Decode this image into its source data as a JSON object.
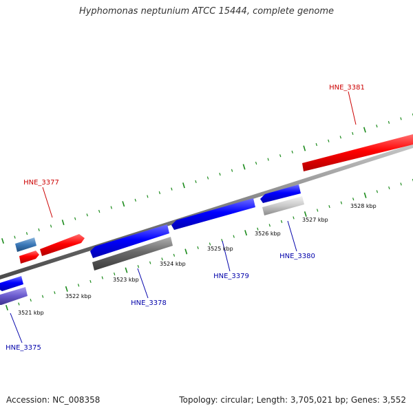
{
  "title": "Hyphomonas neptunium ATCC 15444, complete genome",
  "footer": {
    "accession": "Accession: NC_008358",
    "stats": "Topology: circular; Length: 3,705,021 bp; Genes: 3,552"
  },
  "colors": {
    "forward": "#ff0000",
    "reverse": "#0000ff",
    "tick": "#1a8a1a",
    "backbone": "#808080",
    "label_forward": "#cc0000",
    "label_reverse": "#0000aa"
  },
  "scale_labels": [
    "3521 kbp",
    "3522 kbp",
    "3523 kbp",
    "3524 kbp",
    "3525 kbp",
    "3526 kbp",
    "3527 kbp",
    "3528 kbp"
  ],
  "gene_labels": [
    {
      "id": "HNE_3375",
      "strand": "reverse"
    },
    {
      "id": "HNE_3377",
      "strand": "forward"
    },
    {
      "id": "HNE_3378",
      "strand": "reverse"
    },
    {
      "id": "HNE_3379",
      "strand": "reverse"
    },
    {
      "id": "HNE_3380",
      "strand": "reverse"
    },
    {
      "id": "HNE_3381",
      "strand": "forward"
    }
  ]
}
